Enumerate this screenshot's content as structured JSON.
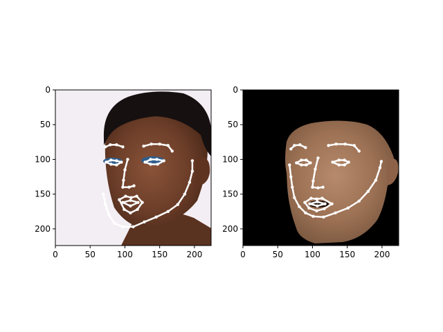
{
  "figure": {
    "background": "#ffffff",
    "left_image": {
      "content": "photo: face with landmark overlay",
      "background_color": "#f3eef3"
    },
    "right_image": {
      "content": "rendered face mesh with landmark overlay",
      "background_color": "#000000"
    }
  },
  "chart_data": [
    {
      "type": "image",
      "title": "",
      "xlabel": "",
      "ylabel": "",
      "xlim": [
        0,
        224
      ],
      "ylim": [
        224,
        0
      ],
      "xticks": [
        0,
        50,
        100,
        150,
        200
      ],
      "yticks": [
        0,
        50,
        100,
        150,
        200
      ],
      "xtick_labels": [
        "0",
        "50",
        "100",
        "150",
        "200"
      ],
      "ytick_labels": [
        "0",
        "50",
        "100",
        "150",
        "200"
      ],
      "landmark_color": "#ffffff",
      "landmarks": {
        "jaw": [
          [
            69,
            150
          ],
          [
            72,
            165
          ],
          [
            77,
            180
          ],
          [
            85,
            192
          ],
          [
            97,
            197
          ],
          [
            112,
            197
          ],
          [
            128,
            190
          ],
          [
            145,
            183
          ],
          [
            162,
            175
          ],
          [
            176,
            165
          ],
          [
            186,
            150
          ],
          [
            193,
            133
          ],
          [
            197,
            117
          ],
          [
            197,
            102
          ]
        ],
        "left_brow": [
          [
            72,
            82
          ],
          [
            79,
            79
          ],
          [
            88,
            79
          ],
          [
            97,
            82
          ]
        ],
        "right_brow": [
          [
            127,
            81
          ],
          [
            138,
            78
          ],
          [
            150,
            78
          ],
          [
            162,
            80
          ],
          [
            168,
            88
          ]
        ],
        "nose": [
          [
            104,
            100
          ],
          [
            100,
            115
          ],
          [
            98,
            130
          ],
          [
            97,
            140
          ],
          [
            106,
            140
          ],
          [
            113,
            138
          ]
        ],
        "left_eye": [
          [
            73,
            104
          ],
          [
            80,
            101
          ],
          [
            88,
            102
          ],
          [
            95,
            104
          ],
          [
            88,
            108
          ],
          [
            80,
            107
          ]
        ],
        "right_eye": [
          [
            129,
            104
          ],
          [
            137,
            100
          ],
          [
            146,
            100
          ],
          [
            156,
            102
          ],
          [
            147,
            107
          ],
          [
            137,
            107
          ]
        ],
        "outer_lips": [
          [
            92,
            158
          ],
          [
            101,
            153
          ],
          [
            109,
            155
          ],
          [
            117,
            153
          ],
          [
            125,
            162
          ],
          [
            118,
            172
          ],
          [
            108,
            177
          ],
          [
            99,
            172
          ]
        ],
        "inner_lips": [
          [
            97,
            162
          ],
          [
            108,
            159
          ],
          [
            119,
            162
          ],
          [
            108,
            167
          ]
        ]
      }
    },
    {
      "type": "image",
      "title": "",
      "xlabel": "",
      "ylabel": "",
      "xlim": [
        0,
        224
      ],
      "ylim": [
        224,
        0
      ],
      "xticks": [
        0,
        50,
        100,
        150,
        200
      ],
      "yticks": [
        0,
        50,
        100,
        150,
        200
      ],
      "xtick_labels": [
        "0",
        "50",
        "100",
        "150",
        "200"
      ],
      "ytick_labels": [
        "0",
        "50",
        "100",
        "150",
        "200"
      ],
      "landmark_color": "#ffffff",
      "landmarks": {
        "jaw": [
          [
            67,
            108
          ],
          [
            69,
            125
          ],
          [
            71,
            140
          ],
          [
            74,
            155
          ],
          [
            81,
            168
          ],
          [
            90,
            177
          ],
          [
            101,
            182
          ],
          [
            116,
            183
          ],
          [
            133,
            177
          ],
          [
            151,
            170
          ],
          [
            167,
            160
          ],
          [
            180,
            146
          ],
          [
            191,
            130
          ],
          [
            197,
            112
          ],
          [
            199,
            103
          ]
        ],
        "left_brow": [
          [
            69,
            85
          ],
          [
            74,
            80
          ],
          [
            82,
            79
          ],
          [
            90,
            83
          ]
        ],
        "right_brow": [
          [
            123,
            80
          ],
          [
            134,
            78
          ],
          [
            147,
            78
          ],
          [
            160,
            80
          ],
          [
            167,
            88
          ]
        ],
        "nose": [
          [
            108,
            98
          ],
          [
            104,
            114
          ],
          [
            101,
            131
          ],
          [
            100,
            140
          ],
          [
            108,
            141
          ],
          [
            115,
            140
          ]
        ],
        "left_eye": [
          [
            77,
            105
          ],
          [
            84,
            101
          ],
          [
            91,
            101
          ],
          [
            97,
            105
          ],
          [
            91,
            108
          ],
          [
            84,
            108
          ]
        ],
        "right_eye": [
          [
            129,
            104
          ],
          [
            138,
            101
          ],
          [
            146,
            101
          ],
          [
            152,
            104
          ],
          [
            146,
            108
          ],
          [
            138,
            108
          ]
        ],
        "outer_lips": [
          [
            89,
            162
          ],
          [
            98,
            156
          ],
          [
            106,
            157
          ],
          [
            114,
            156
          ],
          [
            128,
            164
          ],
          [
            117,
            171
          ],
          [
            106,
            174
          ],
          [
            95,
            170
          ]
        ],
        "inner_lips": [
          [
            96,
            164
          ],
          [
            107,
            161
          ],
          [
            118,
            164
          ],
          [
            107,
            167
          ]
        ]
      }
    }
  ]
}
